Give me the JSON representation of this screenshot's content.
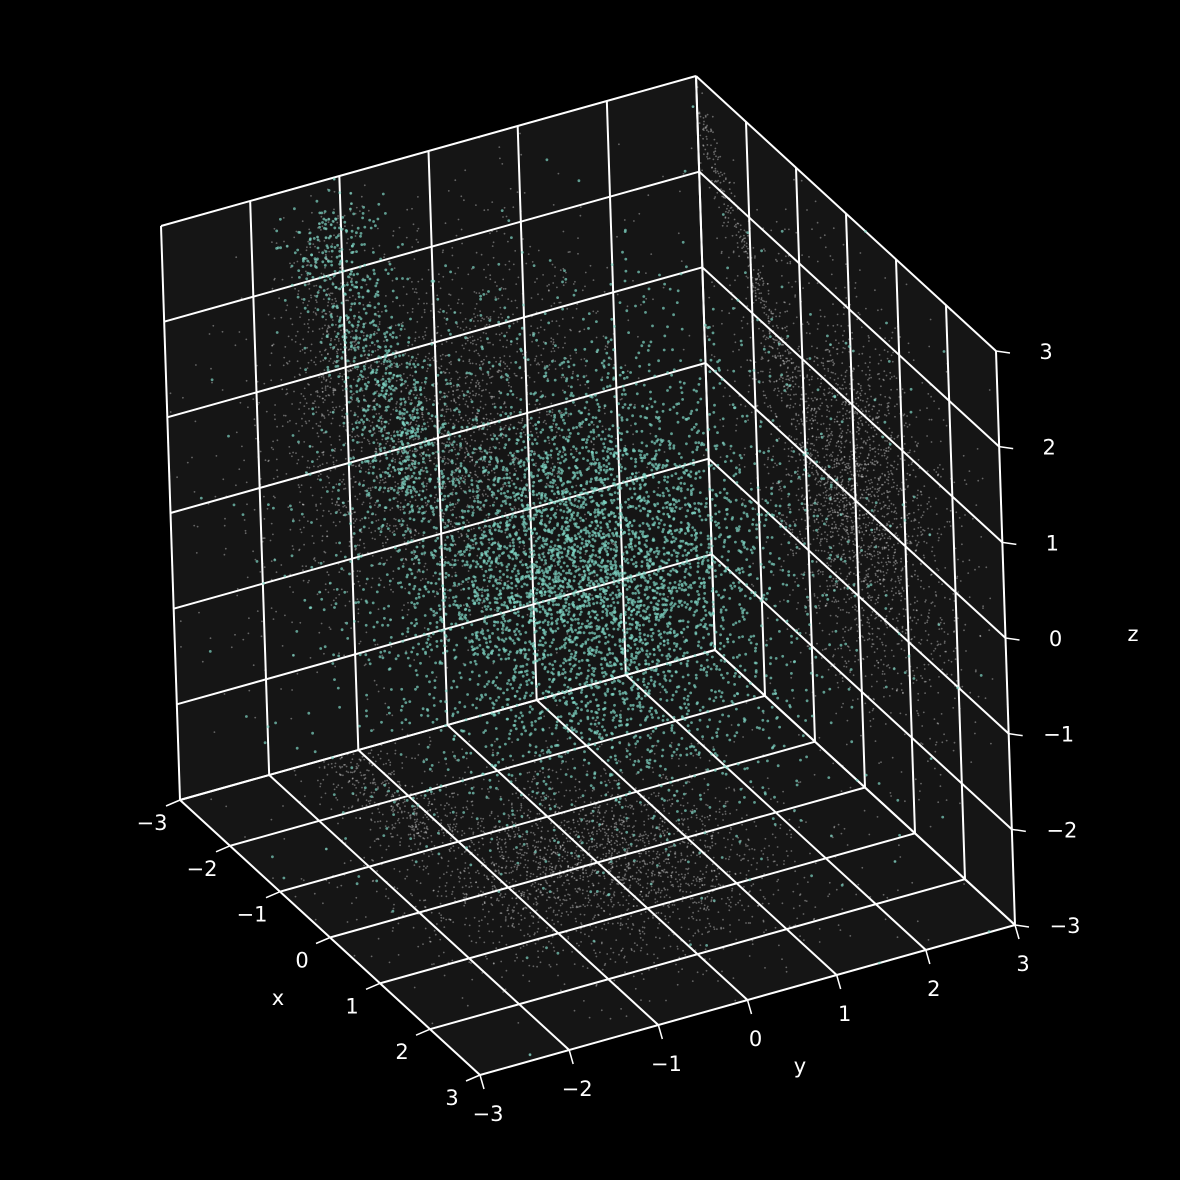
{
  "chart_data": {
    "type": "scatter",
    "projection": "3d",
    "title": "",
    "xlabel": "x",
    "ylabel": "y",
    "zlabel": "z",
    "xlim": [
      -3,
      3
    ],
    "ylim": [
      -3,
      3
    ],
    "zlim": [
      -3,
      3
    ],
    "xticks": [
      -3,
      -2,
      -1,
      0,
      1,
      2,
      3
    ],
    "yticks": [
      -3,
      -2,
      -1,
      0,
      1,
      2,
      3
    ],
    "zticks": [
      -3,
      -2,
      -1,
      0,
      1,
      2,
      3
    ],
    "x_tick_labels": [
      "−3",
      "−2",
      "−1",
      "0",
      "1",
      "2",
      "3"
    ],
    "y_tick_labels": [
      "−3",
      "−2",
      "−1",
      "0",
      "1",
      "2",
      "3"
    ],
    "z_tick_labels": [
      "−3",
      "−2",
      "−1",
      "0",
      "1",
      "2",
      "3"
    ],
    "grid": true,
    "legend": "none",
    "series": [
      {
        "color": "#7fd6c4",
        "distribution": "dense cloud centred near the origin with an extended arm toward negative x and positive z",
        "approx_extent": {
          "x": [
            -3,
            3
          ],
          "y": [
            -3,
            3
          ],
          "z": [
            -3,
            3
          ]
        }
      }
    ],
    "projections": {
      "color": "#ffffff",
      "panes": [
        "back-left (x-z)",
        "back-right (y-z)",
        "floor (x-y)"
      ]
    },
    "colors": {
      "background": "#000000",
      "pane": "#151515",
      "grid": "#ffffff",
      "text": "#ffffff",
      "points": "#7fd6c4",
      "shadow_points": "#ffffff"
    }
  }
}
